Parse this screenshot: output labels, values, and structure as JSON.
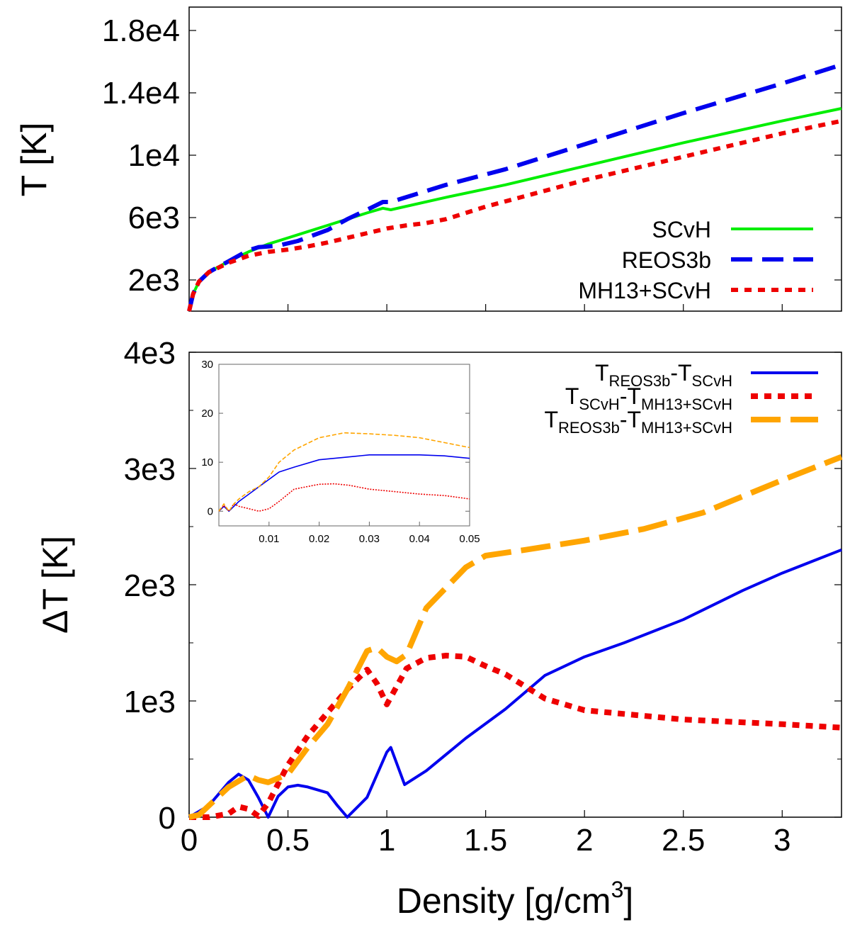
{
  "chart_data": [
    {
      "id": "top",
      "type": "line",
      "ylabel": "T [K]",
      "xlabel": "",
      "xlim": [
        0,
        3.3
      ],
      "ylim": [
        0,
        19500
      ],
      "yticks": [
        2000,
        6000,
        10000,
        14000,
        18000
      ],
      "ytick_labels": [
        "2e3",
        "6e3",
        "1e4",
        "1.4e4",
        "1.8e4"
      ],
      "legend_position": "right",
      "series": [
        {
          "name": "SCvH",
          "color": "#00ee00",
          "style": "solid",
          "x": [
            0,
            0.02,
            0.05,
            0.1,
            0.2,
            0.3,
            0.4,
            0.5,
            0.6,
            0.7,
            0.8,
            0.9,
            0.98,
            1.02,
            1.3,
            1.6,
            2.0,
            2.5,
            3.0,
            3.3
          ],
          "y": [
            0,
            1100,
            1900,
            2500,
            3200,
            3800,
            4300,
            4700,
            5100,
            5500,
            5900,
            6300,
            6600,
            6500,
            7300,
            8100,
            9300,
            10800,
            12200,
            13000
          ]
        },
        {
          "name": "REOS3b",
          "color": "#0000ee",
          "style": "dashed",
          "x": [
            0,
            0.02,
            0.05,
            0.1,
            0.2,
            0.3,
            0.35,
            0.45,
            0.55,
            0.7,
            0.8,
            0.9,
            0.98,
            1.02,
            1.3,
            1.6,
            2.0,
            2.5,
            3.0,
            3.3
          ],
          "y": [
            0,
            1100,
            1900,
            2500,
            3200,
            3900,
            4100,
            4200,
            4500,
            5200,
            5900,
            6500,
            7000,
            7000,
            8100,
            9100,
            10700,
            12700,
            14600,
            15800
          ]
        },
        {
          "name": "MH13+SCvH",
          "color": "#ee0000",
          "style": "dotted",
          "x": [
            0,
            0.02,
            0.05,
            0.1,
            0.2,
            0.3,
            0.4,
            0.5,
            0.6,
            0.7,
            0.8,
            0.9,
            1.0,
            1.1,
            1.2,
            1.3,
            1.5,
            2.0,
            2.5,
            3.0,
            3.3
          ],
          "y": [
            0,
            1100,
            1900,
            2500,
            3100,
            3550,
            3800,
            3950,
            4150,
            4400,
            4700,
            5000,
            5300,
            5500,
            5650,
            5900,
            6700,
            8400,
            9900,
            11400,
            12200
          ]
        }
      ]
    },
    {
      "id": "bottom",
      "type": "line",
      "ylabel": "ΔT [K]",
      "xlabel_main": "Density [g/cm",
      "xlabel_sup": "3",
      "xlabel_end": "]",
      "xlim": [
        0,
        3.3
      ],
      "ylim": [
        0,
        4000
      ],
      "xticks": [
        0,
        0.5,
        1,
        1.5,
        2,
        2.5,
        3
      ],
      "xtick_labels": [
        "0",
        "0.5",
        "1",
        "1.5",
        "2",
        "2.5",
        "3"
      ],
      "yticks": [
        0,
        1000,
        2000,
        3000,
        4000
      ],
      "ytick_labels": [
        "0",
        "1e3",
        "2e3",
        "3e3",
        "4e3"
      ],
      "legend_position": "top-right",
      "series": [
        {
          "name": "TREOS3b-TSCvH",
          "color": "#0000ee",
          "style": "solid",
          "legend_parts": [
            "T",
            "REOS3b",
            "-T",
            "SCvH"
          ],
          "x": [
            0,
            0.1,
            0.2,
            0.25,
            0.3,
            0.35,
            0.4,
            0.45,
            0.5,
            0.55,
            0.6,
            0.7,
            0.75,
            0.8,
            0.9,
            1.0,
            1.02,
            1.09,
            1.2,
            1.4,
            1.6,
            1.8,
            2.0,
            2.2,
            2.5,
            2.8,
            3.0,
            3.3
          ],
          "y": [
            0,
            100,
            300,
            370,
            320,
            170,
            0,
            180,
            260,
            275,
            260,
            210,
            100,
            0,
            170,
            560,
            600,
            280,
            400,
            680,
            930,
            1220,
            1380,
            1500,
            1700,
            1950,
            2100,
            2300
          ]
        },
        {
          "name": "TSCvH-TMH13+SCvH",
          "color": "#ee0000",
          "style": "dotted",
          "legend_parts": [
            "T",
            "SCvH",
            "-T",
            "MH13+SCvH"
          ],
          "x": [
            0,
            0.1,
            0.2,
            0.25,
            0.3,
            0.35,
            0.4,
            0.5,
            0.6,
            0.7,
            0.8,
            0.9,
            0.95,
            1.0,
            1.1,
            1.2,
            1.3,
            1.4,
            1.5,
            1.6,
            1.8,
            2.0,
            2.5,
            3.0,
            3.3
          ],
          "y": [
            0,
            0,
            30,
            90,
            70,
            10,
            120,
            450,
            700,
            900,
            1100,
            1270,
            1150,
            970,
            1280,
            1370,
            1390,
            1380,
            1300,
            1230,
            1020,
            920,
            840,
            800,
            770
          ]
        },
        {
          "name": "TREOS3b-TMH13+SCvH",
          "color": "#ffa500",
          "style": "longdash",
          "legend_parts": [
            "T",
            "REOS3b",
            "-T",
            "MH13+SCvH"
          ],
          "x": [
            0,
            0.05,
            0.1,
            0.2,
            0.3,
            0.35,
            0.4,
            0.5,
            0.6,
            0.7,
            0.8,
            0.9,
            0.95,
            1.0,
            1.05,
            1.1,
            1.2,
            1.4,
            1.5,
            1.7,
            2.0,
            2.3,
            2.6,
            3.0,
            3.3
          ],
          "y": [
            0,
            20,
            100,
            260,
            360,
            320,
            300,
            370,
            600,
            800,
            1100,
            1430,
            1460,
            1380,
            1340,
            1400,
            1800,
            2150,
            2250,
            2300,
            2380,
            2480,
            2620,
            2900,
            3100
          ]
        }
      ]
    },
    {
      "id": "inset",
      "type": "line",
      "xlim": [
        0,
        0.05
      ],
      "ylim": [
        -3,
        30
      ],
      "xticks": [
        0.01,
        0.02,
        0.03,
        0.04,
        0.05
      ],
      "xtick_labels": [
        "0.01",
        "0.02",
        "0.03",
        "0.04",
        "0.05"
      ],
      "yticks": [
        0,
        10,
        20,
        30
      ],
      "ytick_labels": [
        "0",
        "10",
        "20",
        "30"
      ],
      "series": [
        {
          "name": "TREOS3b-TSCvH",
          "color": "#0000ee",
          "style": "solid",
          "x": [
            0,
            0.001,
            0.002,
            0.003,
            0.004,
            0.006,
            0.008,
            0.01,
            0.012,
            0.015,
            0.02,
            0.025,
            0.03,
            0.035,
            0.04,
            0.045,
            0.05
          ],
          "y": [
            0,
            1,
            0,
            1,
            2,
            3.5,
            5,
            6.5,
            8,
            9,
            10.5,
            11,
            11.5,
            11.5,
            11.5,
            11.3,
            10.8
          ]
        },
        {
          "name": "TSCvH-TMH13+SCvH",
          "color": "#ee0000",
          "style": "dotted",
          "x": [
            0,
            0.001,
            0.002,
            0.003,
            0.004,
            0.006,
            0.008,
            0.01,
            0.012,
            0.015,
            0.02,
            0.023,
            0.026,
            0.03,
            0.035,
            0.04,
            0.045,
            0.05
          ],
          "y": [
            0,
            1.2,
            0,
            1.5,
            1,
            0.5,
            0,
            0.5,
            2,
            4.5,
            5.5,
            5.6,
            5.3,
            4.5,
            4,
            3.5,
            3.2,
            2.5
          ]
        },
        {
          "name": "TREOS3b-TMH13+SCvH",
          "color": "#ffa500",
          "style": "dashed",
          "x": [
            0,
            0.001,
            0.002,
            0.003,
            0.004,
            0.006,
            0.008,
            0.01,
            0.012,
            0.015,
            0.02,
            0.025,
            0.03,
            0.035,
            0.04,
            0.045,
            0.05
          ],
          "y": [
            0,
            1.5,
            0,
            1.5,
            2.5,
            4,
            5,
            7,
            10,
            12.5,
            15,
            16,
            15.8,
            15.5,
            15,
            14,
            13
          ]
        }
      ]
    }
  ]
}
